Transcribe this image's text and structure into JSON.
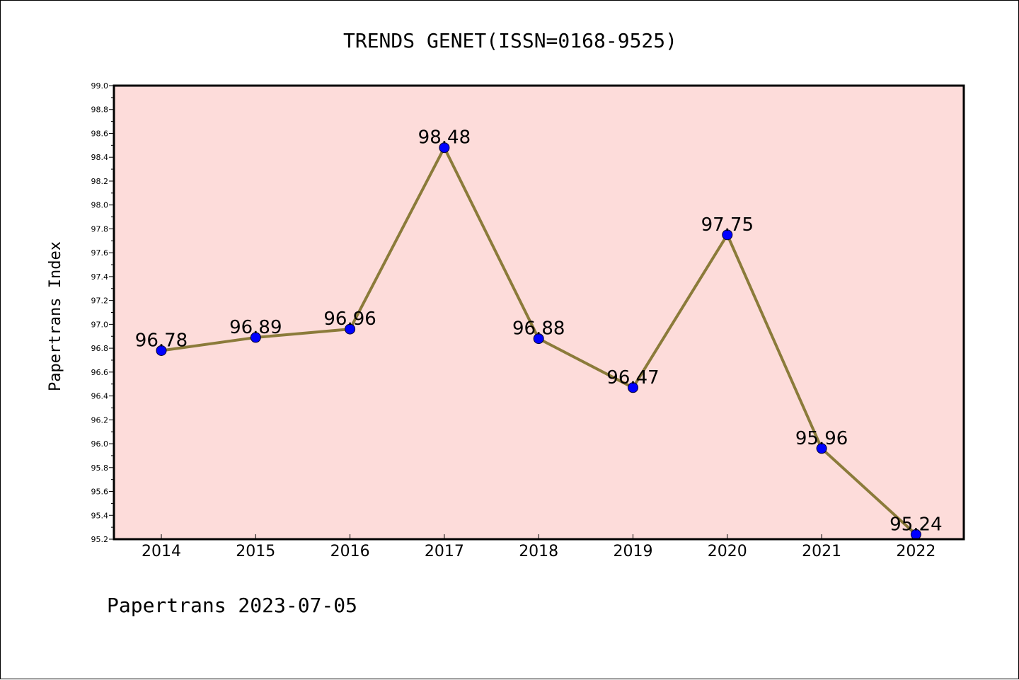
{
  "chart_data": {
    "type": "line",
    "title": "TRENDS GENET(ISSN=0168-9525)",
    "xlabel": "",
    "ylabel": "Papertrans Index",
    "categories": [
      "2014",
      "2015",
      "2016",
      "2017",
      "2018",
      "2019",
      "2020",
      "2021",
      "2022"
    ],
    "series": [
      {
        "values": [
          96.78,
          96.89,
          96.96,
          98.48,
          96.88,
          96.47,
          97.75,
          95.96,
          95.24
        ],
        "line_color": "#8B7B3A",
        "marker_color": "#0000FF"
      }
    ],
    "data_labels": [
      "96.78",
      "96.89",
      "96.96",
      "98.48",
      "96.88",
      "96.47",
      "97.75",
      "95.96",
      "95.24"
    ],
    "ylim": [
      95.2,
      99.0
    ],
    "yticks": [
      "95.2",
      "95.4",
      "95.6",
      "95.8",
      "96.0",
      "96.2",
      "96.4",
      "96.6",
      "96.8",
      "97.0",
      "97.2",
      "97.4",
      "97.6",
      "97.8",
      "98.0",
      "98.2",
      "98.4",
      "98.6",
      "98.8",
      "99.0"
    ],
    "grid": false,
    "legend": "none",
    "plot_background": "#FDDCDA"
  },
  "footer": {
    "text": "Papertrans 2023-07-05"
  }
}
